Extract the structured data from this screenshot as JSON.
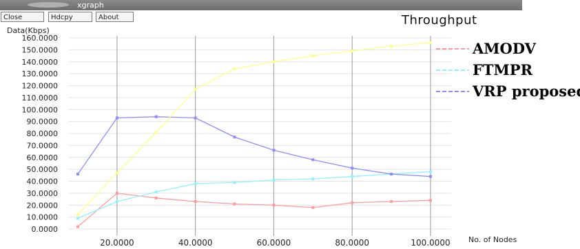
{
  "window": {
    "title": "xgraph",
    "buttons": [
      {
        "label": "Close"
      },
      {
        "label": "Hdcpy"
      },
      {
        "label": "About"
      }
    ]
  },
  "colors": {
    "AMODV": "#ff9a9a",
    "FTMPR": "#8ff2ff",
    "VRP proposed": "#8c8cff",
    "yellow_series": "#ffff88",
    "grid_v": "#9a9a9a",
    "grid_h": "#e4e4e4"
  },
  "chart_data": {
    "type": "line",
    "title": "Throughput",
    "ylabel": "Data(Kbps)",
    "xlabel": "No. of Nodes",
    "xlim": [
      10,
      100
    ],
    "ylim": [
      0,
      155
    ],
    "grid": true,
    "legend_position": "right",
    "yticks": [
      "0.0000",
      "10.0000",
      "20.0000",
      "30.0000",
      "40.0000",
      "50.0000",
      "60.0000",
      "70.0000",
      "80.0000",
      "90.0000",
      "100.0000",
      "110.0000",
      "120.0000",
      "130.0000",
      "140.0000",
      "150.0000",
      "160.0000"
    ],
    "ytick_values": [
      0,
      10,
      20,
      30,
      40,
      50,
      60,
      70,
      80,
      90,
      100,
      110,
      120,
      130,
      140,
      150,
      160
    ],
    "xticks": [
      "20.0000",
      "40.0000",
      "60.0000",
      "80.0000",
      "100.0000"
    ],
    "xtick_values": [
      20,
      40,
      60,
      80,
      100
    ],
    "series": [
      {
        "name": "AMODV",
        "color": "#ff9a9a",
        "legend": true,
        "x": [
          10,
          20,
          30,
          40,
          50,
          60,
          70,
          80,
          90,
          100
        ],
        "y": [
          2,
          30,
          26,
          23,
          21,
          20,
          18,
          22,
          23,
          24
        ]
      },
      {
        "name": "FTMPR",
        "color": "#8ff2ff",
        "legend": true,
        "x": [
          10,
          20,
          30,
          40,
          50,
          60,
          70,
          80,
          90,
          100
        ],
        "y": [
          9,
          23,
          31,
          38,
          39,
          41,
          42,
          44,
          46,
          48
        ]
      },
      {
        "name": "VRP proposed",
        "color": "#8c8cff",
        "legend": true,
        "x": [
          10,
          20,
          30,
          40,
          50,
          60,
          70,
          80,
          90,
          100
        ],
        "y": [
          46,
          93,
          94,
          93,
          77,
          66,
          58,
          51,
          46,
          44
        ]
      },
      {
        "color": "#ffff88",
        "legend": false,
        "x": [
          10,
          20,
          30,
          40,
          50,
          60,
          70,
          80,
          90,
          100
        ],
        "y": [
          12,
          47,
          81,
          117,
          134,
          140,
          145,
          149,
          153,
          156
        ]
      }
    ]
  }
}
